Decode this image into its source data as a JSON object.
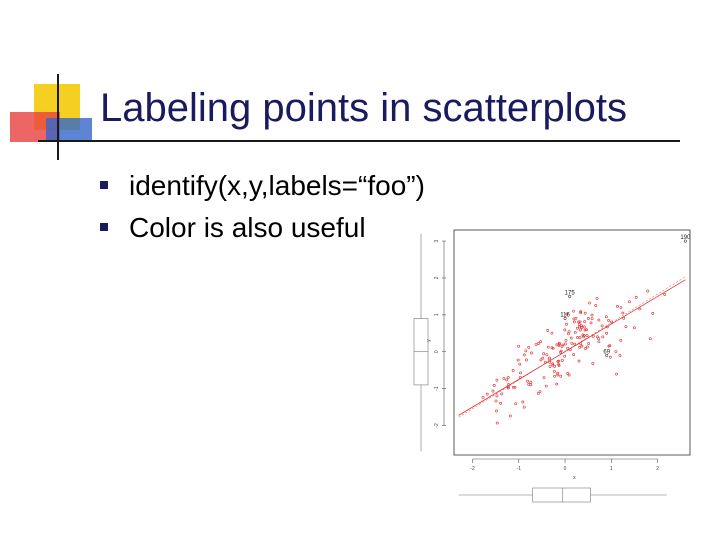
{
  "slide": {
    "title": "Labeling points in scatterplots",
    "bullets": [
      "identify(x,y,labels=“foo”)",
      "Color is also useful"
    ]
  },
  "colors": {
    "title": "#1a1a5e",
    "deco_yellow": "#f5d020",
    "deco_red": "#e84040",
    "deco_blue": "#3366cc",
    "points": "#e03030"
  },
  "chart_data": {
    "type": "scatter",
    "title": "",
    "xlabel": "x",
    "ylabel": "y",
    "xlim": [
      -2.4,
      2.7
    ],
    "ylim": [
      -2.8,
      3.3
    ],
    "x_ticks": [
      "-2",
      "-1",
      "0",
      "1",
      "2"
    ],
    "y_ticks": [
      "-2",
      "-1",
      "0",
      "1",
      "2",
      "3"
    ],
    "regression": {
      "slope": 0.75,
      "intercept": 0.0
    },
    "labeled_points": [
      {
        "label": "190",
        "x": 2.6,
        "y": 3.0
      },
      {
        "label": "175",
        "x": 0.1,
        "y": 1.5
      },
      {
        "label": "116",
        "x": 0.0,
        "y": 0.9
      },
      {
        "label": "69",
        "x": 0.9,
        "y": -0.1
      }
    ],
    "grid": false,
    "marginal_boxplots": [
      "x",
      "y"
    ]
  }
}
